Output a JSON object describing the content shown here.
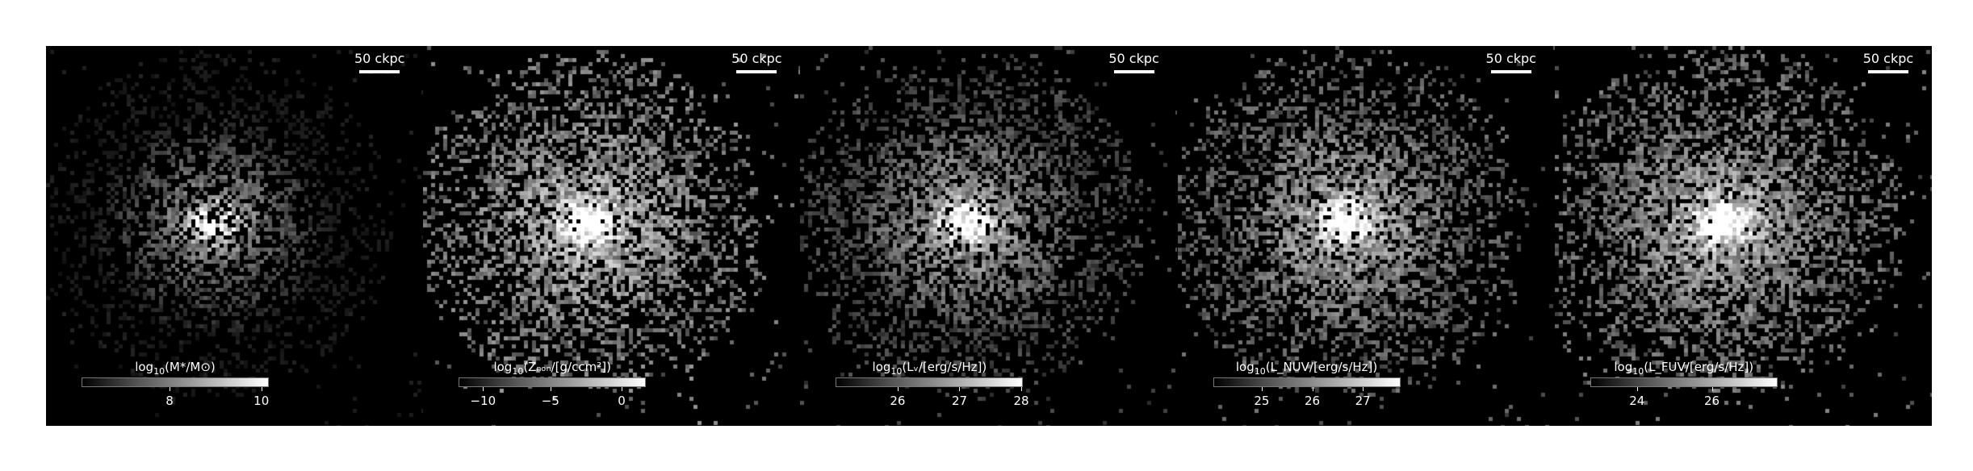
{
  "scale_bar_label": "50 ckpc",
  "panels": [
    {
      "quantity": "stellar-mass",
      "colorbar_label_prefix": "log",
      "colorbar_label_sub": "10",
      "colorbar_label_rest": "(M*/M⊙)",
      "ticks": [
        {
          "label": "8",
          "frac": 0.47
        },
        {
          "label": "10",
          "frac": 0.96
        }
      ],
      "tone": {
        "center": 0.95,
        "bg": 0.12,
        "fill": 0.55,
        "spread": 0.45
      }
    },
    {
      "quantity": "metallicity",
      "colorbar_label_prefix": "log",
      "colorbar_label_sub": "10",
      "colorbar_label_rest": "(Zₙₒₙ/[g/ccm²])",
      "ticks": [
        {
          "label": "−10",
          "frac": 0.13
        },
        {
          "label": "−5",
          "frac": 0.49
        },
        {
          "label": "0",
          "frac": 0.87
        }
      ],
      "tone": {
        "center": 0.95,
        "bg": 0.5,
        "fill": 0.85,
        "spread": 0.55
      }
    },
    {
      "quantity": "v-band-luminosity",
      "colorbar_label_prefix": "log",
      "colorbar_label_sub": "10",
      "colorbar_label_rest": "(Lᵥ/[erg/s/Hz])",
      "ticks": [
        {
          "label": "26",
          "frac": 0.33
        },
        {
          "label": "27",
          "frac": 0.66
        },
        {
          "label": "28",
          "frac": 0.99
        }
      ],
      "tone": {
        "center": 1.0,
        "bg": 0.3,
        "fill": 0.8,
        "spread": 0.55
      }
    },
    {
      "quantity": "nuv-luminosity",
      "colorbar_label_prefix": "log",
      "colorbar_label_sub": "10",
      "colorbar_label_rest": "(L_NUV/[erg/s/Hz])",
      "ticks": [
        {
          "label": "25",
          "frac": 0.26
        },
        {
          "label": "26",
          "frac": 0.53
        },
        {
          "label": "27",
          "frac": 0.8
        }
      ],
      "tone": {
        "center": 1.0,
        "bg": 0.4,
        "fill": 0.85,
        "spread": 0.6
      }
    },
    {
      "quantity": "fuv-luminosity",
      "colorbar_label_prefix": "log",
      "colorbar_label_sub": "10",
      "colorbar_label_rest": "(L_FUV/[erg/s/Hz])",
      "ticks": [
        {
          "label": "24",
          "frac": 0.25
        },
        {
          "label": "26",
          "frac": 0.65
        }
      ],
      "tone": {
        "center": 1.0,
        "bg": 0.45,
        "fill": 0.9,
        "spread": 0.65
      }
    }
  ]
}
